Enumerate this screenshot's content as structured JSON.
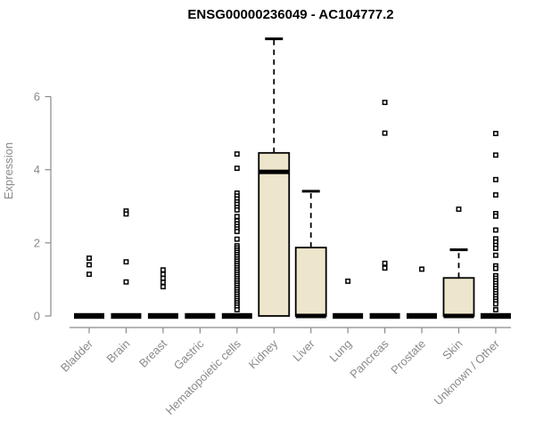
{
  "chart_data": {
    "type": "boxplot",
    "title": "ENSG00000236049 - AC104777.2",
    "ylabel": "Expression",
    "yticks": [
      0,
      2,
      4,
      6
    ],
    "ylim": [
      0,
      7.7
    ],
    "grid": false,
    "legend": null,
    "axis_color": "#8a8a8a",
    "box_fill_color": "#EDE6CC",
    "box_edge_color": "#000000",
    "outlier_marker": "open-square",
    "categories": [
      "Bladder",
      "Brain",
      "Breast",
      "Gastric",
      "Hematopoietic cells",
      "Kidney",
      "Liver",
      "Lung",
      "Pancreas",
      "Prostate",
      "Skin",
      "Unknown / Other"
    ],
    "series": [
      {
        "category": "Bladder",
        "q1": 0,
        "median": 0,
        "q3": 0,
        "whisker_low": 0,
        "whisker_high": 0,
        "outliers": [
          1.58,
          1.4,
          1.14
        ]
      },
      {
        "category": "Brain",
        "q1": 0,
        "median": 0,
        "q3": 0,
        "whisker_low": 0,
        "whisker_high": 0,
        "outliers": [
          2.87,
          2.79,
          1.48,
          0.93
        ]
      },
      {
        "category": "Breast",
        "q1": 0,
        "median": 0,
        "q3": 0,
        "whisker_low": 0,
        "whisker_high": 0,
        "outliers": [
          1.26,
          1.14,
          1.03,
          0.92,
          0.8
        ]
      },
      {
        "category": "Gastric",
        "q1": 0,
        "median": 0,
        "q3": 0,
        "whisker_low": 0,
        "whisker_high": 0,
        "outliers": []
      },
      {
        "category": "Hematopoietic cells",
        "q1": 0,
        "median": 0,
        "q3": 0,
        "whisker_low": 0,
        "whisker_high": 0,
        "outliers": [
          4.43,
          4.04,
          3.36,
          3.28,
          3.2,
          3.12,
          3.05,
          2.97,
          2.9,
          2.72,
          2.6,
          2.52,
          2.45,
          2.38,
          2.31,
          2.1,
          1.92,
          1.86,
          1.8,
          1.74,
          1.68,
          1.62,
          1.56,
          1.5,
          1.44,
          1.38,
          1.32,
          1.26,
          1.2,
          1.14,
          1.08,
          1.02,
          0.96,
          0.9,
          0.84,
          0.78,
          0.72,
          0.66,
          0.6,
          0.54,
          0.48,
          0.42,
          0.36,
          0.3,
          0.24,
          0.17
        ]
      },
      {
        "category": "Kidney",
        "q1": 0,
        "median": 3.94,
        "q3": 4.46,
        "whisker_low": 0,
        "whisker_high": 7.58,
        "outliers": []
      },
      {
        "category": "Liver",
        "q1": 0,
        "median": 0,
        "q3": 1.87,
        "whisker_low": 0,
        "whisker_high": 3.41,
        "outliers": []
      },
      {
        "category": "Lung",
        "q1": 0,
        "median": 0,
        "q3": 0,
        "whisker_low": 0,
        "whisker_high": 0,
        "outliers": [
          0.95
        ]
      },
      {
        "category": "Pancreas",
        "q1": 0,
        "median": 0,
        "q3": 0,
        "whisker_low": 0,
        "whisker_high": 0,
        "outliers": [
          5.84,
          5.0,
          1.44,
          1.31
        ]
      },
      {
        "category": "Prostate",
        "q1": 0,
        "median": 0,
        "q3": 0,
        "whisker_low": 0,
        "whisker_high": 0,
        "outliers": [
          1.28
        ]
      },
      {
        "category": "Skin",
        "q1": 0,
        "median": 0,
        "q3": 1.04,
        "whisker_low": 0,
        "whisker_high": 1.81,
        "outliers": [
          2.92
        ]
      },
      {
        "category": "Unknown / Other",
        "q1": 0,
        "median": 0,
        "q3": 0,
        "whisker_low": 0,
        "whisker_high": 0,
        "outliers": [
          4.99,
          4.4,
          3.73,
          3.31,
          2.8,
          2.73,
          2.35,
          2.11,
          2.02,
          1.93,
          1.85,
          1.66,
          1.37,
          1.3,
          1.1,
          1.03,
          0.96,
          0.89,
          0.82,
          0.75,
          0.68,
          0.61,
          0.54,
          0.47,
          0.4,
          0.33,
          0.17
        ]
      }
    ]
  }
}
